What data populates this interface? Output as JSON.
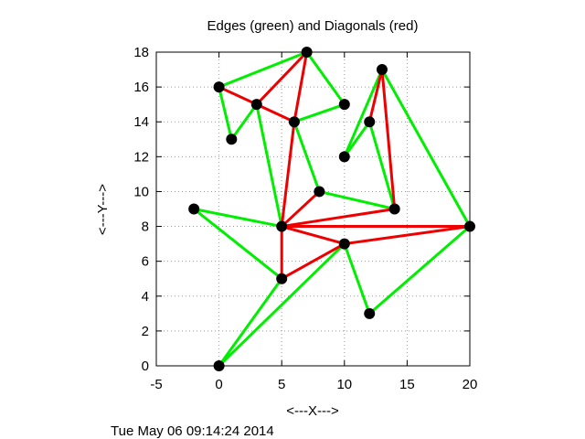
{
  "chart_data": {
    "type": "scatter",
    "title": "Edges (green) and Diagonals (red)",
    "xlabel": "<---X--->",
    "ylabel": "<---Y--->",
    "xlim": [
      -5,
      20
    ],
    "ylim": [
      0,
      18
    ],
    "xticks": [
      -5,
      0,
      5,
      10,
      15,
      20
    ],
    "yticks": [
      0,
      2,
      4,
      6,
      8,
      10,
      12,
      14,
      16,
      18
    ],
    "grid": true,
    "timestamp": "Tue May 06 09:14:24 2014",
    "colors": {
      "edge": "#00ee00",
      "diagonal": "#ee0000",
      "vertex": "#000000",
      "grid": "#999999"
    },
    "vertices": [
      [
        0,
        0
      ],
      [
        5,
        5
      ],
      [
        5,
        8
      ],
      [
        -2,
        9
      ],
      [
        10,
        7
      ],
      [
        12,
        3
      ],
      [
        20,
        8
      ],
      [
        14,
        9
      ],
      [
        8,
        10
      ],
      [
        10,
        12
      ],
      [
        12,
        14
      ],
      [
        13,
        17
      ],
      [
        10,
        15
      ],
      [
        6,
        14
      ],
      [
        3,
        15
      ],
      [
        1,
        13
      ],
      [
        0,
        16
      ],
      [
        7,
        18
      ]
    ],
    "edges": [
      [
        [
          0,
          16
        ],
        [
          7,
          18
        ]
      ],
      [
        [
          7,
          18
        ],
        [
          10,
          15
        ]
      ],
      [
        [
          0,
          16
        ],
        [
          1,
          13
        ]
      ],
      [
        [
          1,
          13
        ],
        [
          3,
          15
        ]
      ],
      [
        [
          3,
          15
        ],
        [
          5,
          8
        ]
      ],
      [
        [
          6,
          14
        ],
        [
          10,
          15
        ]
      ],
      [
        [
          6,
          14
        ],
        [
          8,
          10
        ]
      ],
      [
        [
          8,
          10
        ],
        [
          14,
          9
        ]
      ],
      [
        [
          14,
          9
        ],
        [
          12,
          14
        ]
      ],
      [
        [
          12,
          14
        ],
        [
          10,
          12
        ]
      ],
      [
        [
          10,
          12
        ],
        [
          13,
          17
        ]
      ],
      [
        [
          13,
          17
        ],
        [
          20,
          8
        ]
      ],
      [
        [
          20,
          8
        ],
        [
          12,
          3
        ]
      ],
      [
        [
          12,
          3
        ],
        [
          10,
          7
        ]
      ],
      [
        [
          10,
          7
        ],
        [
          0,
          0
        ]
      ],
      [
        [
          0,
          0
        ],
        [
          5,
          5
        ]
      ],
      [
        [
          5,
          5
        ],
        [
          -2,
          9
        ]
      ],
      [
        [
          -2,
          9
        ],
        [
          5,
          8
        ]
      ]
    ],
    "diagonals": [
      [
        [
          0,
          16
        ],
        [
          3,
          15
        ]
      ],
      [
        [
          3,
          15
        ],
        [
          7,
          18
        ]
      ],
      [
        [
          3,
          15
        ],
        [
          6,
          14
        ]
      ],
      [
        [
          7,
          18
        ],
        [
          6,
          14
        ]
      ],
      [
        [
          6,
          14
        ],
        [
          5,
          8
        ]
      ],
      [
        [
          5,
          8
        ],
        [
          8,
          10
        ]
      ],
      [
        [
          5,
          8
        ],
        [
          14,
          9
        ]
      ],
      [
        [
          5,
          8
        ],
        [
          20,
          8
        ]
      ],
      [
        [
          5,
          8
        ],
        [
          5,
          5
        ]
      ],
      [
        [
          5,
          8
        ],
        [
          10,
          7
        ]
      ],
      [
        [
          5,
          5
        ],
        [
          10,
          7
        ]
      ],
      [
        [
          10,
          7
        ],
        [
          20,
          8
        ]
      ],
      [
        [
          14,
          9
        ],
        [
          13,
          17
        ]
      ],
      [
        [
          12,
          14
        ],
        [
          13,
          17
        ]
      ]
    ]
  }
}
